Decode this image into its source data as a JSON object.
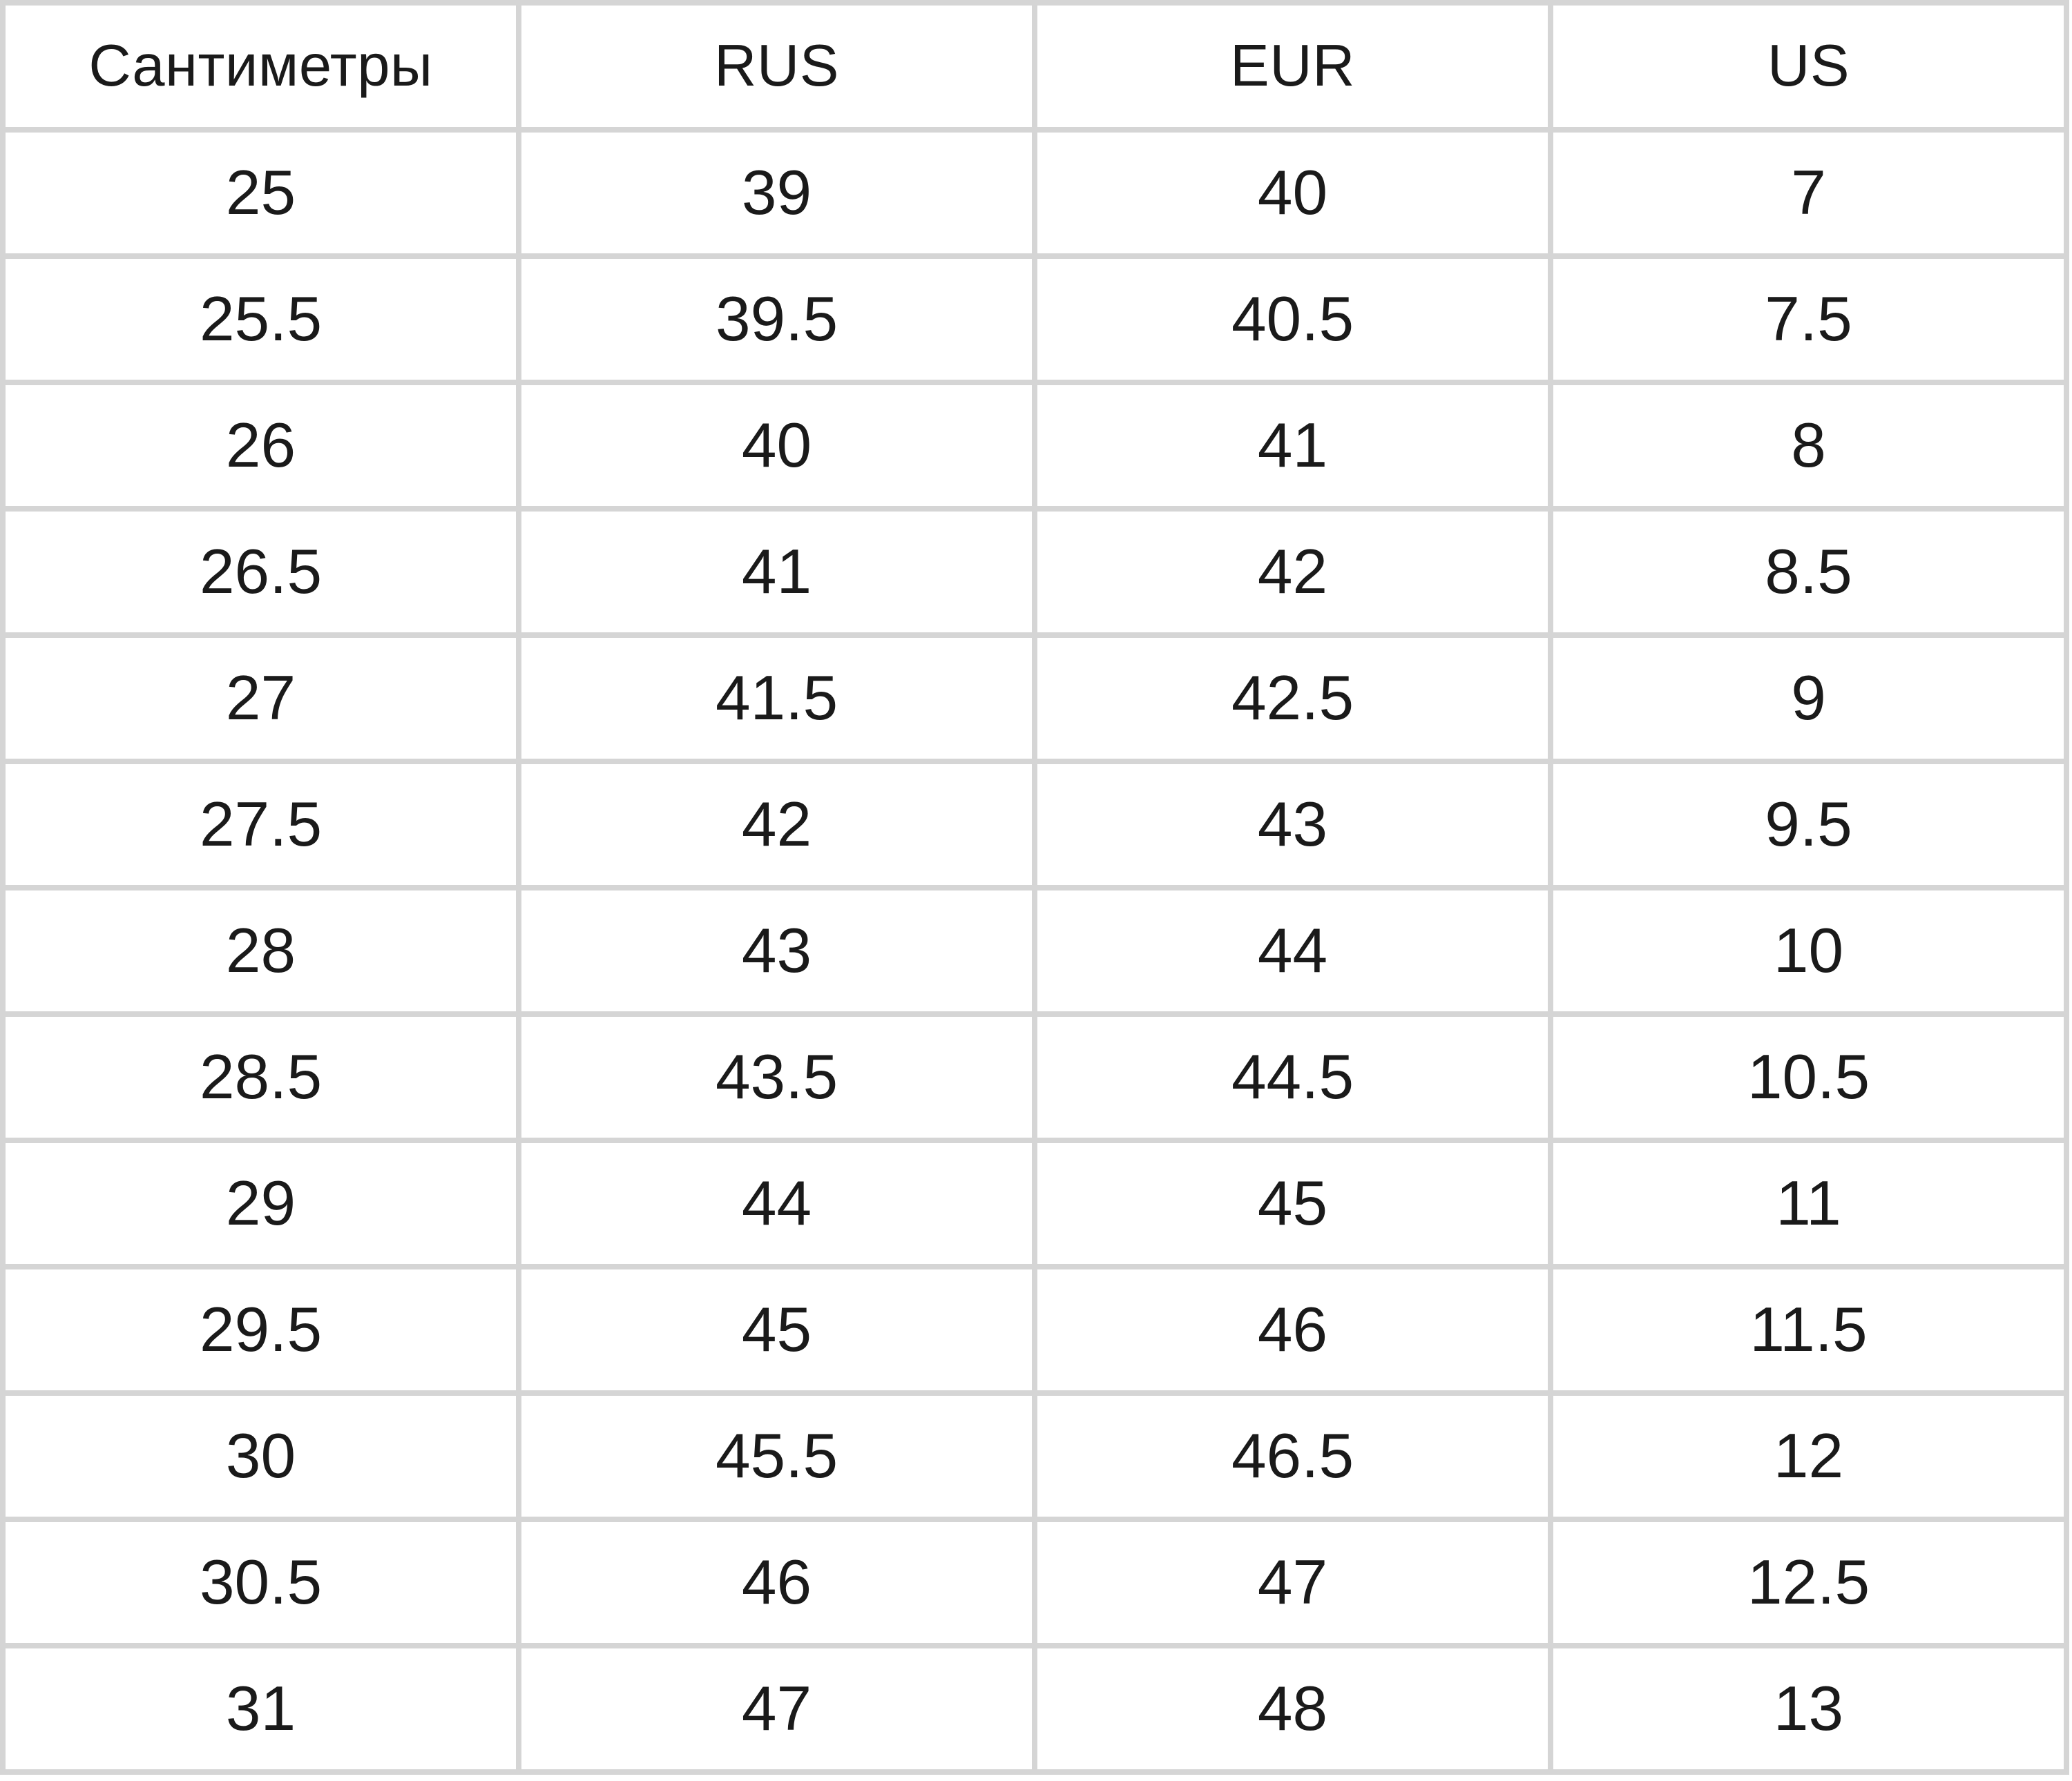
{
  "chart_data": {
    "type": "table",
    "columns": [
      "Сантиметры",
      "RUS",
      "EUR",
      "US"
    ],
    "rows": [
      [
        "25",
        "39",
        "40",
        "7"
      ],
      [
        "25.5",
        "39.5",
        "40.5",
        "7.5"
      ],
      [
        "26",
        "40",
        "41",
        "8"
      ],
      [
        "26.5",
        "41",
        "42",
        "8.5"
      ],
      [
        "27",
        "41.5",
        "42.5",
        "9"
      ],
      [
        "27.5",
        "42",
        "43",
        "9.5"
      ],
      [
        "28",
        "43",
        "44",
        "10"
      ],
      [
        "28.5",
        "43.5",
        "44.5",
        "10.5"
      ],
      [
        "29",
        "44",
        "45",
        "11"
      ],
      [
        "29.5",
        "45",
        "46",
        "11.5"
      ],
      [
        "30",
        "45.5",
        "46.5",
        "12"
      ],
      [
        "30.5",
        "46",
        "47",
        "12.5"
      ],
      [
        "31",
        "47",
        "48",
        "13"
      ]
    ],
    "grid": true,
    "legend": false
  },
  "colors": {
    "border": "#d5d5d5",
    "text": "#1a1a1a",
    "background": "#ffffff"
  }
}
